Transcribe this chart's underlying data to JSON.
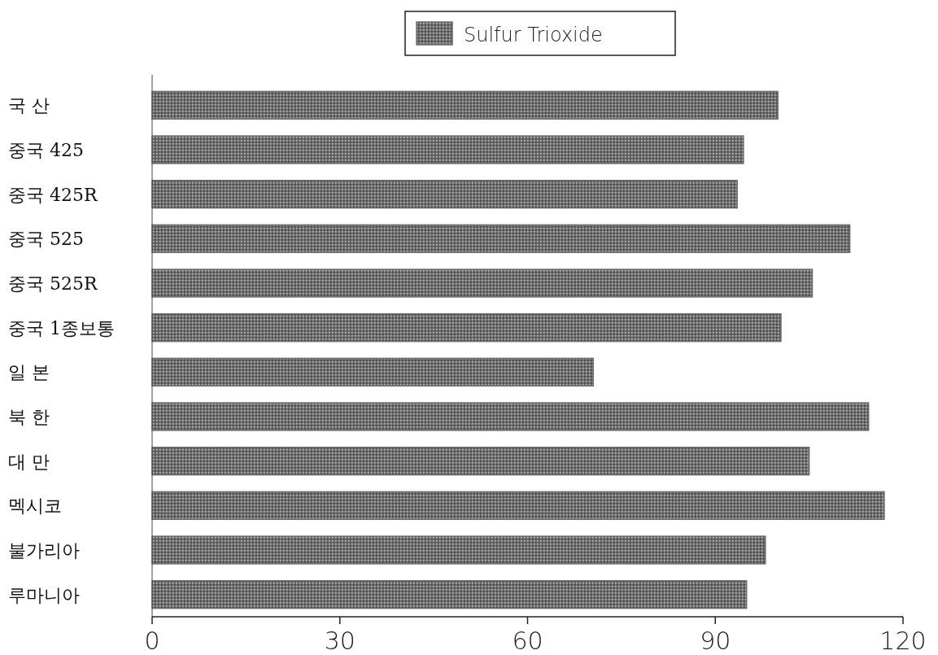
{
  "chart_data": {
    "type": "bar",
    "orientation": "horizontal",
    "categories": [
      "국 산",
      "중국 425",
      "중국 425R",
      "중국 525",
      "중국 525R",
      "중국 1종보통",
      "일 본",
      "북 한",
      "대 만",
      "멕시코",
      "불가리아",
      "루마니아"
    ],
    "series": [
      {
        "name": "Sulfur Trioxide",
        "color": "#6e6e6e",
        "values": [
          100,
          94.5,
          93.5,
          111.5,
          105.5,
          100.5,
          70.5,
          114.5,
          105,
          117,
          98,
          95
        ]
      }
    ],
    "xlim": [
      0,
      120
    ],
    "xticks": [
      0,
      30,
      60,
      90,
      120
    ],
    "grid": false,
    "legend": "top"
  }
}
